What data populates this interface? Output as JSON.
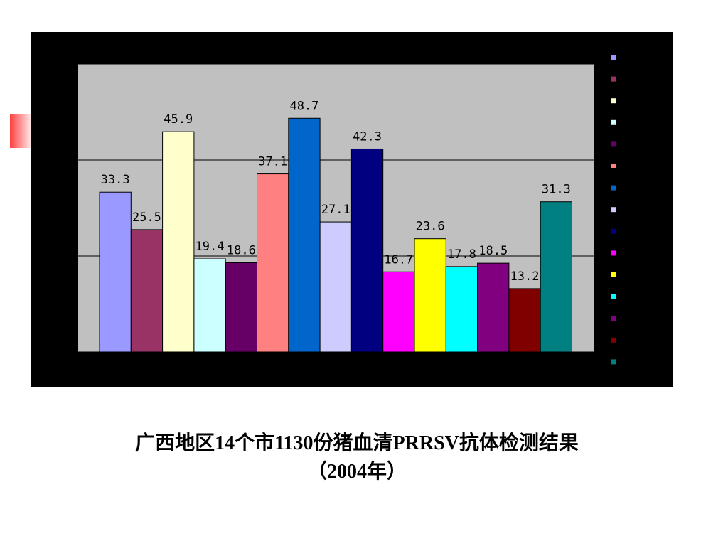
{
  "chart_data": {
    "type": "bar",
    "title": "广西地区14个市1130份猪血清PRRSV抗体检测结果",
    "subtitle": "（2004年）",
    "categories": [
      null,
      null,
      null,
      null,
      null,
      null,
      null,
      null,
      null,
      null,
      null,
      null,
      null,
      null,
      null
    ],
    "values": [
      33.3,
      25.5,
      45.9,
      19.4,
      18.6,
      37.1,
      48.7,
      27.1,
      42.3,
      16.7,
      23.6,
      17.8,
      18.5,
      13.2,
      31.3
    ],
    "colors": [
      "#9999ff",
      "#993366",
      "#ffffcc",
      "#ccffff",
      "#660066",
      "#ff8080",
      "#0066cc",
      "#ccccff",
      "#000080",
      "#ff00ff",
      "#ffff00",
      "#00ffff",
      "#800080",
      "#800000",
      "#008080"
    ],
    "ylim": [
      0,
      60
    ],
    "yticks": [
      0,
      10,
      20,
      30,
      40,
      50,
      60
    ],
    "grid": true
  }
}
